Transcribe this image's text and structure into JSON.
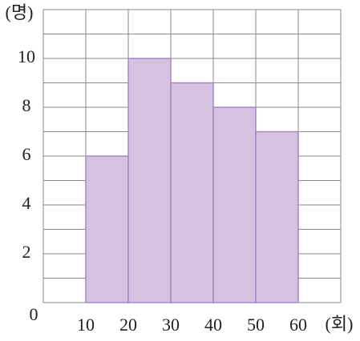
{
  "chart_data": {
    "type": "histogram",
    "bins": [
      10,
      20,
      30,
      40,
      50,
      60
    ],
    "values": [
      6,
      10,
      9,
      8,
      7
    ],
    "color": "#d4c2e0",
    "edge_color": "#a986c4",
    "xlim": [
      0,
      70
    ],
    "xticks": [
      10,
      20,
      30,
      40,
      50,
      60
    ],
    "ylim": [
      0,
      12
    ],
    "yticks": [
      0,
      2,
      4,
      6,
      8,
      10
    ],
    "x_label": "(회)",
    "y_label": "(명)",
    "grid": true
  }
}
